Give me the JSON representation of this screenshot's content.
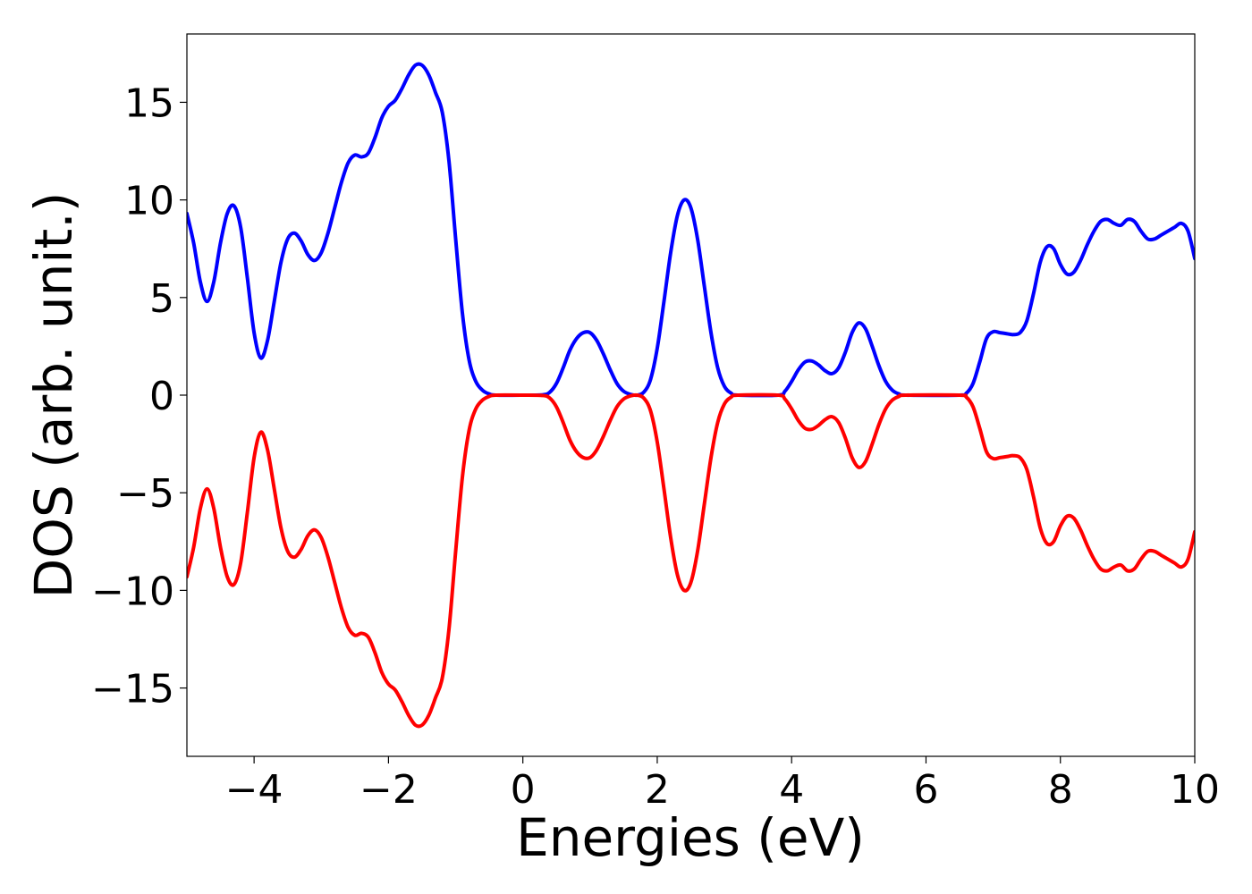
{
  "chart_data": {
    "type": "line",
    "title": "",
    "xlabel": "Energies (eV)",
    "ylabel": "DOS (arb. unit.)",
    "xlim": [
      -5,
      10
    ],
    "ylim": [
      -18.5,
      18.5
    ],
    "grid": false,
    "legend": "none",
    "xticks": [
      {
        "value": -4,
        "label": "−4"
      },
      {
        "value": -2,
        "label": "−2"
      },
      {
        "value": 0,
        "label": "0"
      },
      {
        "value": 2,
        "label": "2"
      },
      {
        "value": 4,
        "label": "4"
      },
      {
        "value": 6,
        "label": "6"
      },
      {
        "value": 8,
        "label": "8"
      },
      {
        "value": 10,
        "label": "10"
      }
    ],
    "yticks": [
      {
        "value": 15,
        "label": "15"
      },
      {
        "value": 10,
        "label": "10"
      },
      {
        "value": 5,
        "label": "5"
      },
      {
        "value": 0,
        "label": "0"
      },
      {
        "value": -5,
        "label": "−5"
      },
      {
        "value": -10,
        "label": "−10"
      },
      {
        "value": -15,
        "label": "−15"
      }
    ],
    "series": [
      {
        "color": "#0000ff",
        "points": [
          [
            -5.0,
            9.3
          ],
          [
            -4.9,
            7.8
          ],
          [
            -4.8,
            5.8
          ],
          [
            -4.7,
            4.8
          ],
          [
            -4.6,
            5.8
          ],
          [
            -4.5,
            7.8
          ],
          [
            -4.4,
            9.3
          ],
          [
            -4.3,
            9.7
          ],
          [
            -4.2,
            8.6
          ],
          [
            -4.1,
            6.0
          ],
          [
            -4.0,
            3.2
          ],
          [
            -3.9,
            1.9
          ],
          [
            -3.8,
            2.8
          ],
          [
            -3.7,
            4.8
          ],
          [
            -3.6,
            6.8
          ],
          [
            -3.5,
            8.0
          ],
          [
            -3.4,
            8.3
          ],
          [
            -3.3,
            7.9
          ],
          [
            -3.2,
            7.2
          ],
          [
            -3.1,
            6.9
          ],
          [
            -3.0,
            7.3
          ],
          [
            -2.9,
            8.3
          ],
          [
            -2.8,
            9.6
          ],
          [
            -2.7,
            10.9
          ],
          [
            -2.6,
            11.9
          ],
          [
            -2.5,
            12.3
          ],
          [
            -2.4,
            12.2
          ],
          [
            -2.3,
            12.4
          ],
          [
            -2.2,
            13.2
          ],
          [
            -2.1,
            14.2
          ],
          [
            -2.0,
            14.8
          ],
          [
            -1.9,
            15.1
          ],
          [
            -1.8,
            15.7
          ],
          [
            -1.7,
            16.4
          ],
          [
            -1.6,
            16.9
          ],
          [
            -1.5,
            16.9
          ],
          [
            -1.4,
            16.4
          ],
          [
            -1.3,
            15.5
          ],
          [
            -1.2,
            14.5
          ],
          [
            -1.1,
            12.0
          ],
          [
            -1.0,
            8.0
          ],
          [
            -0.9,
            4.2
          ],
          [
            -0.8,
            1.8
          ],
          [
            -0.7,
            0.7
          ],
          [
            -0.6,
            0.25
          ],
          [
            -0.5,
            0.06
          ],
          [
            -0.4,
            0.0
          ],
          [
            0.0,
            0.0
          ],
          [
            0.3,
            0.02
          ],
          [
            0.4,
            0.15
          ],
          [
            0.5,
            0.6
          ],
          [
            0.6,
            1.4
          ],
          [
            0.7,
            2.3
          ],
          [
            0.8,
            2.9
          ],
          [
            0.9,
            3.2
          ],
          [
            1.0,
            3.2
          ],
          [
            1.1,
            2.8
          ],
          [
            1.2,
            2.1
          ],
          [
            1.3,
            1.3
          ],
          [
            1.4,
            0.6
          ],
          [
            1.5,
            0.2
          ],
          [
            1.6,
            0.04
          ],
          [
            1.7,
            0.0
          ],
          [
            1.8,
            0.15
          ],
          [
            1.9,
            0.8
          ],
          [
            2.0,
            2.4
          ],
          [
            2.1,
            4.8
          ],
          [
            2.2,
            7.3
          ],
          [
            2.3,
            9.2
          ],
          [
            2.4,
            10.0
          ],
          [
            2.5,
            9.6
          ],
          [
            2.6,
            8.0
          ],
          [
            2.7,
            5.6
          ],
          [
            2.8,
            3.2
          ],
          [
            2.9,
            1.4
          ],
          [
            3.0,
            0.45
          ],
          [
            3.1,
            0.1
          ],
          [
            3.2,
            0.0
          ],
          [
            3.8,
            0.0
          ],
          [
            3.9,
            0.2
          ],
          [
            4.0,
            0.7
          ],
          [
            4.1,
            1.3
          ],
          [
            4.2,
            1.7
          ],
          [
            4.3,
            1.75
          ],
          [
            4.4,
            1.55
          ],
          [
            4.5,
            1.25
          ],
          [
            4.6,
            1.1
          ],
          [
            4.7,
            1.4
          ],
          [
            4.8,
            2.2
          ],
          [
            4.9,
            3.2
          ],
          [
            5.0,
            3.7
          ],
          [
            5.1,
            3.4
          ],
          [
            5.2,
            2.5
          ],
          [
            5.3,
            1.5
          ],
          [
            5.4,
            0.7
          ],
          [
            5.5,
            0.25
          ],
          [
            5.6,
            0.06
          ],
          [
            5.7,
            0.0
          ],
          [
            6.5,
            0.0
          ],
          [
            6.6,
            0.1
          ],
          [
            6.7,
            0.6
          ],
          [
            6.8,
            1.7
          ],
          [
            6.9,
            2.9
          ],
          [
            7.0,
            3.25
          ],
          [
            7.1,
            3.2
          ],
          [
            7.2,
            3.15
          ],
          [
            7.3,
            3.1
          ],
          [
            7.4,
            3.2
          ],
          [
            7.5,
            3.8
          ],
          [
            7.6,
            5.2
          ],
          [
            7.7,
            6.8
          ],
          [
            7.8,
            7.6
          ],
          [
            7.9,
            7.5
          ],
          [
            8.0,
            6.7
          ],
          [
            8.1,
            6.2
          ],
          [
            8.2,
            6.3
          ],
          [
            8.3,
            6.9
          ],
          [
            8.4,
            7.7
          ],
          [
            8.5,
            8.4
          ],
          [
            8.6,
            8.9
          ],
          [
            8.7,
            9.0
          ],
          [
            8.8,
            8.8
          ],
          [
            8.9,
            8.7
          ],
          [
            9.0,
            9.0
          ],
          [
            9.1,
            8.9
          ],
          [
            9.2,
            8.4
          ],
          [
            9.3,
            8.0
          ],
          [
            9.4,
            8.0
          ],
          [
            9.5,
            8.2
          ],
          [
            9.6,
            8.4
          ],
          [
            9.7,
            8.6
          ],
          [
            9.8,
            8.8
          ],
          [
            9.9,
            8.4
          ],
          [
            10.0,
            7.0
          ]
        ]
      },
      {
        "color": "#ff0000",
        "points": [
          [
            -5.0,
            -9.3
          ],
          [
            -4.9,
            -7.8
          ],
          [
            -4.8,
            -5.8
          ],
          [
            -4.7,
            -4.8
          ],
          [
            -4.6,
            -5.8
          ],
          [
            -4.5,
            -7.8
          ],
          [
            -4.4,
            -9.3
          ],
          [
            -4.3,
            -9.7
          ],
          [
            -4.2,
            -8.6
          ],
          [
            -4.1,
            -6.0
          ],
          [
            -4.0,
            -3.2
          ],
          [
            -3.9,
            -1.9
          ],
          [
            -3.8,
            -2.8
          ],
          [
            -3.7,
            -4.8
          ],
          [
            -3.6,
            -6.8
          ],
          [
            -3.5,
            -8.0
          ],
          [
            -3.4,
            -8.3
          ],
          [
            -3.3,
            -7.9
          ],
          [
            -3.2,
            -7.2
          ],
          [
            -3.1,
            -6.9
          ],
          [
            -3.0,
            -7.3
          ],
          [
            -2.9,
            -8.3
          ],
          [
            -2.8,
            -9.6
          ],
          [
            -2.7,
            -10.9
          ],
          [
            -2.6,
            -11.9
          ],
          [
            -2.5,
            -12.3
          ],
          [
            -2.4,
            -12.2
          ],
          [
            -2.3,
            -12.4
          ],
          [
            -2.2,
            -13.2
          ],
          [
            -2.1,
            -14.2
          ],
          [
            -2.0,
            -14.8
          ],
          [
            -1.9,
            -15.1
          ],
          [
            -1.8,
            -15.7
          ],
          [
            -1.7,
            -16.4
          ],
          [
            -1.6,
            -16.9
          ],
          [
            -1.5,
            -16.9
          ],
          [
            -1.4,
            -16.4
          ],
          [
            -1.3,
            -15.5
          ],
          [
            -1.2,
            -14.5
          ],
          [
            -1.1,
            -12.0
          ],
          [
            -1.0,
            -8.0
          ],
          [
            -0.9,
            -4.2
          ],
          [
            -0.8,
            -1.8
          ],
          [
            -0.7,
            -0.7
          ],
          [
            -0.6,
            -0.25
          ],
          [
            -0.5,
            -0.06
          ],
          [
            -0.4,
            0.0
          ],
          [
            0.0,
            0.0
          ],
          [
            0.3,
            -0.02
          ],
          [
            0.4,
            -0.15
          ],
          [
            0.5,
            -0.6
          ],
          [
            0.6,
            -1.4
          ],
          [
            0.7,
            -2.3
          ],
          [
            0.8,
            -2.9
          ],
          [
            0.9,
            -3.2
          ],
          [
            1.0,
            -3.2
          ],
          [
            1.1,
            -2.8
          ],
          [
            1.2,
            -2.1
          ],
          [
            1.3,
            -1.3
          ],
          [
            1.4,
            -0.6
          ],
          [
            1.5,
            -0.2
          ],
          [
            1.6,
            -0.04
          ],
          [
            1.7,
            0.0
          ],
          [
            1.8,
            -0.15
          ],
          [
            1.9,
            -0.8
          ],
          [
            2.0,
            -2.4
          ],
          [
            2.1,
            -4.8
          ],
          [
            2.2,
            -7.3
          ],
          [
            2.3,
            -9.2
          ],
          [
            2.4,
            -10.0
          ],
          [
            2.5,
            -9.6
          ],
          [
            2.6,
            -8.0
          ],
          [
            2.7,
            -5.6
          ],
          [
            2.8,
            -3.2
          ],
          [
            2.9,
            -1.4
          ],
          [
            3.0,
            -0.45
          ],
          [
            3.1,
            -0.1
          ],
          [
            3.2,
            0.0
          ],
          [
            3.8,
            0.0
          ],
          [
            3.9,
            -0.2
          ],
          [
            4.0,
            -0.7
          ],
          [
            4.1,
            -1.3
          ],
          [
            4.2,
            -1.7
          ],
          [
            4.3,
            -1.75
          ],
          [
            4.4,
            -1.55
          ],
          [
            4.5,
            -1.25
          ],
          [
            4.6,
            -1.1
          ],
          [
            4.7,
            -1.4
          ],
          [
            4.8,
            -2.2
          ],
          [
            4.9,
            -3.2
          ],
          [
            5.0,
            -3.7
          ],
          [
            5.1,
            -3.4
          ],
          [
            5.2,
            -2.5
          ],
          [
            5.3,
            -1.5
          ],
          [
            5.4,
            -0.7
          ],
          [
            5.5,
            -0.25
          ],
          [
            5.6,
            -0.06
          ],
          [
            5.7,
            0.0
          ],
          [
            6.5,
            0.0
          ],
          [
            6.6,
            -0.1
          ],
          [
            6.7,
            -0.6
          ],
          [
            6.8,
            -1.7
          ],
          [
            6.9,
            -2.9
          ],
          [
            7.0,
            -3.25
          ],
          [
            7.1,
            -3.2
          ],
          [
            7.2,
            -3.15
          ],
          [
            7.3,
            -3.1
          ],
          [
            7.4,
            -3.2
          ],
          [
            7.5,
            -3.8
          ],
          [
            7.6,
            -5.2
          ],
          [
            7.7,
            -6.8
          ],
          [
            7.8,
            -7.6
          ],
          [
            7.9,
            -7.5
          ],
          [
            8.0,
            -6.7
          ],
          [
            8.1,
            -6.2
          ],
          [
            8.2,
            -6.3
          ],
          [
            8.3,
            -6.9
          ],
          [
            8.4,
            -7.7
          ],
          [
            8.5,
            -8.4
          ],
          [
            8.6,
            -8.9
          ],
          [
            8.7,
            -9.0
          ],
          [
            8.8,
            -8.8
          ],
          [
            8.9,
            -8.7
          ],
          [
            9.0,
            -9.0
          ],
          [
            9.1,
            -8.9
          ],
          [
            9.2,
            -8.4
          ],
          [
            9.3,
            -8.0
          ],
          [
            9.4,
            -8.0
          ],
          [
            9.5,
            -8.2
          ],
          [
            9.6,
            -8.4
          ],
          [
            9.7,
            -8.6
          ],
          [
            9.8,
            -8.8
          ],
          [
            9.9,
            -8.4
          ],
          [
            10.0,
            -7.0
          ]
        ]
      }
    ]
  }
}
